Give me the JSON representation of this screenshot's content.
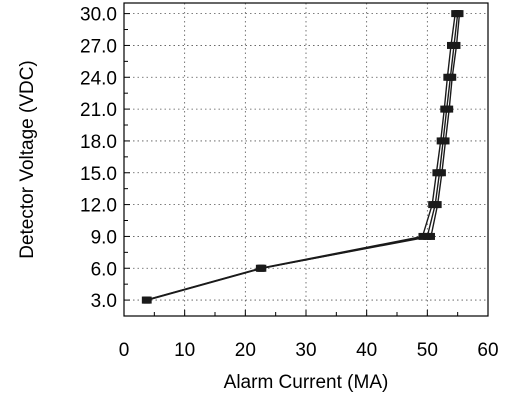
{
  "chart_data": {
    "type": "line",
    "xlabel": "Alarm Current (MA)",
    "ylabel": "Detector Voltage (VDC)",
    "xlim": [
      0,
      60
    ],
    "ylim": [
      1.5,
      31
    ],
    "xticks": [
      "0",
      "10",
      "20",
      "30",
      "40",
      "50",
      "60"
    ],
    "yticks": [
      "3.0",
      "6.0",
      "9.0",
      "12.0",
      "15.0",
      "18.0",
      "21.0",
      "24.0",
      "27.0",
      "30.0"
    ],
    "grid": true,
    "grid_style": "dotted",
    "series": [
      {
        "color": "#1a1a1a",
        "marker": "square",
        "points": [
          [
            3.6,
            3.0
          ],
          [
            22.4,
            6.0
          ],
          [
            49.2,
            9.0
          ],
          [
            50.8,
            12.0
          ],
          [
            51.5,
            15.0
          ],
          [
            52.2,
            18.0
          ],
          [
            52.8,
            21.0
          ],
          [
            53.3,
            24.0
          ],
          [
            53.9,
            27.0
          ],
          [
            54.6,
            30.0
          ]
        ]
      },
      {
        "color": "#1a1a1a",
        "marker": "square",
        "points": [
          [
            3.9,
            3.0
          ],
          [
            22.8,
            6.0
          ],
          [
            50.0,
            9.0
          ],
          [
            51.3,
            12.0
          ],
          [
            52.0,
            15.0
          ],
          [
            52.6,
            18.0
          ],
          [
            53.2,
            21.0
          ],
          [
            53.8,
            24.0
          ],
          [
            54.4,
            27.0
          ],
          [
            55.0,
            30.0
          ]
        ]
      },
      {
        "color": "#1a1a1a",
        "marker": "square",
        "points": [
          [
            3.7,
            3.0
          ],
          [
            22.6,
            6.0
          ],
          [
            50.6,
            9.0
          ],
          [
            51.7,
            12.0
          ],
          [
            52.4,
            15.0
          ],
          [
            53.0,
            18.0
          ],
          [
            53.6,
            21.0
          ],
          [
            54.1,
            24.0
          ],
          [
            54.8,
            27.0
          ],
          [
            55.3,
            30.0
          ]
        ]
      }
    ]
  }
}
